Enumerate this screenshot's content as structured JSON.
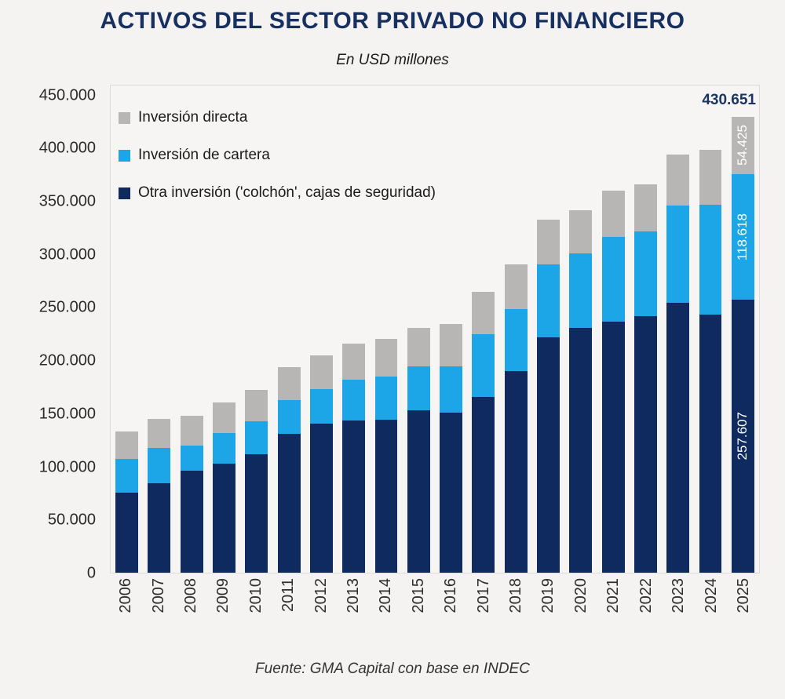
{
  "title": "ACTIVOS DEL SECTOR PRIVADO NO FINANCIERO",
  "subtitle": "En USD millones",
  "source": "Fuente: GMA Capital con base en INDEC",
  "colors": {
    "gray": "#b7b6b4",
    "blue": "#1ca6e8",
    "navy": "#0e2a5e",
    "title_navy": "#183060",
    "background": "#f4f3f1"
  },
  "chart_data": {
    "type": "bar",
    "stacked": true,
    "title": "ACTIVOS DEL SECTOR PRIVADO NO FINANCIERO",
    "subtitle": "En USD millones",
    "xlabel": "",
    "ylabel": "",
    "ylim": [
      0,
      450000
    ],
    "plot_max": 460000,
    "grid": false,
    "legend_position": "top-left",
    "x_label_rotation": 90,
    "categories": [
      "2006",
      "2007",
      "2008",
      "2009",
      "2010",
      "2011",
      "2012",
      "2013",
      "2014",
      "2015",
      "2016",
      "2017",
      "2018",
      "2019",
      "2020",
      "2021",
      "2022",
      "2023",
      "2024",
      "2025"
    ],
    "series": [
      {
        "name": "Inversión directa",
        "color_key": "gray",
        "values": [
          26000,
          27500,
          28500,
          29000,
          29500,
          31000,
          32000,
          34000,
          35000,
          36500,
          39500,
          40000,
          42500,
          41500,
          41000,
          43500,
          44500,
          48000,
          51500,
          54425
        ]
      },
      {
        "name": "Inversión de cartera",
        "color_key": "blue",
        "values": [
          32000,
          33500,
          24000,
          29000,
          31500,
          32000,
          32500,
          38500,
          41000,
          41000,
          44000,
          59000,
          58500,
          69500,
          70500,
          80000,
          79500,
          92000,
          104000,
          118618
        ]
      },
      {
        "name": "Otra inversión ('colchón', cajas de seguridad)",
        "color_key": "navy",
        "values": [
          75500,
          84500,
          96000,
          103000,
          111500,
          131000,
          141000,
          144000,
          144500,
          153500,
          151000,
          166000,
          190500,
          222000,
          231000,
          237000,
          242500,
          255000,
          243500,
          257607
        ]
      }
    ],
    "y_ticks": [
      {
        "label": "0",
        "value": 0
      },
      {
        "label": "50.000",
        "value": 50000
      },
      {
        "label": "100.000",
        "value": 100000
      },
      {
        "label": "150.000",
        "value": 150000
      },
      {
        "label": "200.000",
        "value": 200000
      },
      {
        "label": "250.000",
        "value": 250000
      },
      {
        "label": "300.000",
        "value": 300000
      },
      {
        "label": "350.000",
        "value": 350000
      },
      {
        "label": "400.000",
        "value": 400000
      },
      {
        "label": "450.000",
        "value": 450000
      }
    ],
    "annotations": {
      "total_label": "430.651",
      "total_label_category": "2025",
      "inbar_labels": [
        {
          "series_index": 0,
          "series": "Inversión directa",
          "text": "54.425"
        },
        {
          "series_index": 1,
          "series": "Inversión de cartera",
          "text": "118.618"
        },
        {
          "series_index": 2,
          "series": "Otra inversión ('colchón', cajas de seguridad)",
          "text": "257.607"
        }
      ]
    }
  }
}
